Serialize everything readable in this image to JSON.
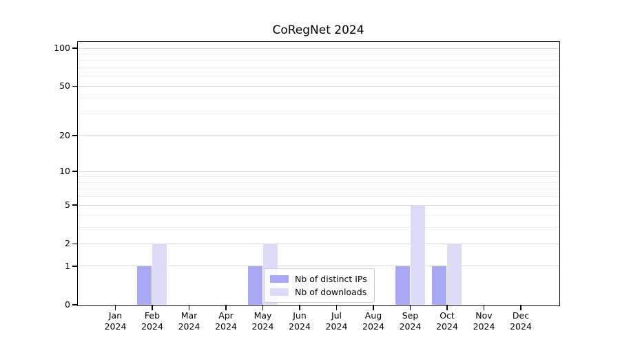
{
  "chart_data": {
    "type": "bar",
    "title": "CoRegNet 2024",
    "scale": "log1p",
    "grid": "horizontal",
    "legend_position": "lower center",
    "categories": [
      {
        "month": "Jan",
        "year": "2024"
      },
      {
        "month": "Feb",
        "year": "2024"
      },
      {
        "month": "Mar",
        "year": "2024"
      },
      {
        "month": "Apr",
        "year": "2024"
      },
      {
        "month": "May",
        "year": "2024"
      },
      {
        "month": "Jun",
        "year": "2024"
      },
      {
        "month": "Jul",
        "year": "2024"
      },
      {
        "month": "Aug",
        "year": "2024"
      },
      {
        "month": "Sep",
        "year": "2024"
      },
      {
        "month": "Oct",
        "year": "2024"
      },
      {
        "month": "Nov",
        "year": "2024"
      },
      {
        "month": "Dec",
        "year": "2024"
      }
    ],
    "series": [
      {
        "name": "Nb of distinct IPs",
        "color": "#a8a8f4",
        "values": [
          0,
          1,
          0,
          0,
          1,
          0,
          0,
          0,
          1,
          1,
          0,
          0
        ]
      },
      {
        "name": "Nb of downloads",
        "color": "#dcdcf8",
        "values": [
          0,
          2,
          0,
          0,
          2,
          0,
          0,
          0,
          5,
          2,
          0,
          0
        ]
      }
    ],
    "y_major_ticks": [
      0,
      1,
      2,
      5,
      10,
      20,
      50,
      100
    ],
    "y_minor_gridlines": [
      3,
      4,
      6,
      7,
      8,
      9,
      30,
      40,
      60,
      70,
      80,
      90
    ],
    "ylim": [
      0,
      112
    ],
    "colors": {
      "major_grid": "#d6d6d6",
      "minor_grid": "#ededed",
      "spine": "#000000",
      "background": "#ffffff"
    }
  }
}
